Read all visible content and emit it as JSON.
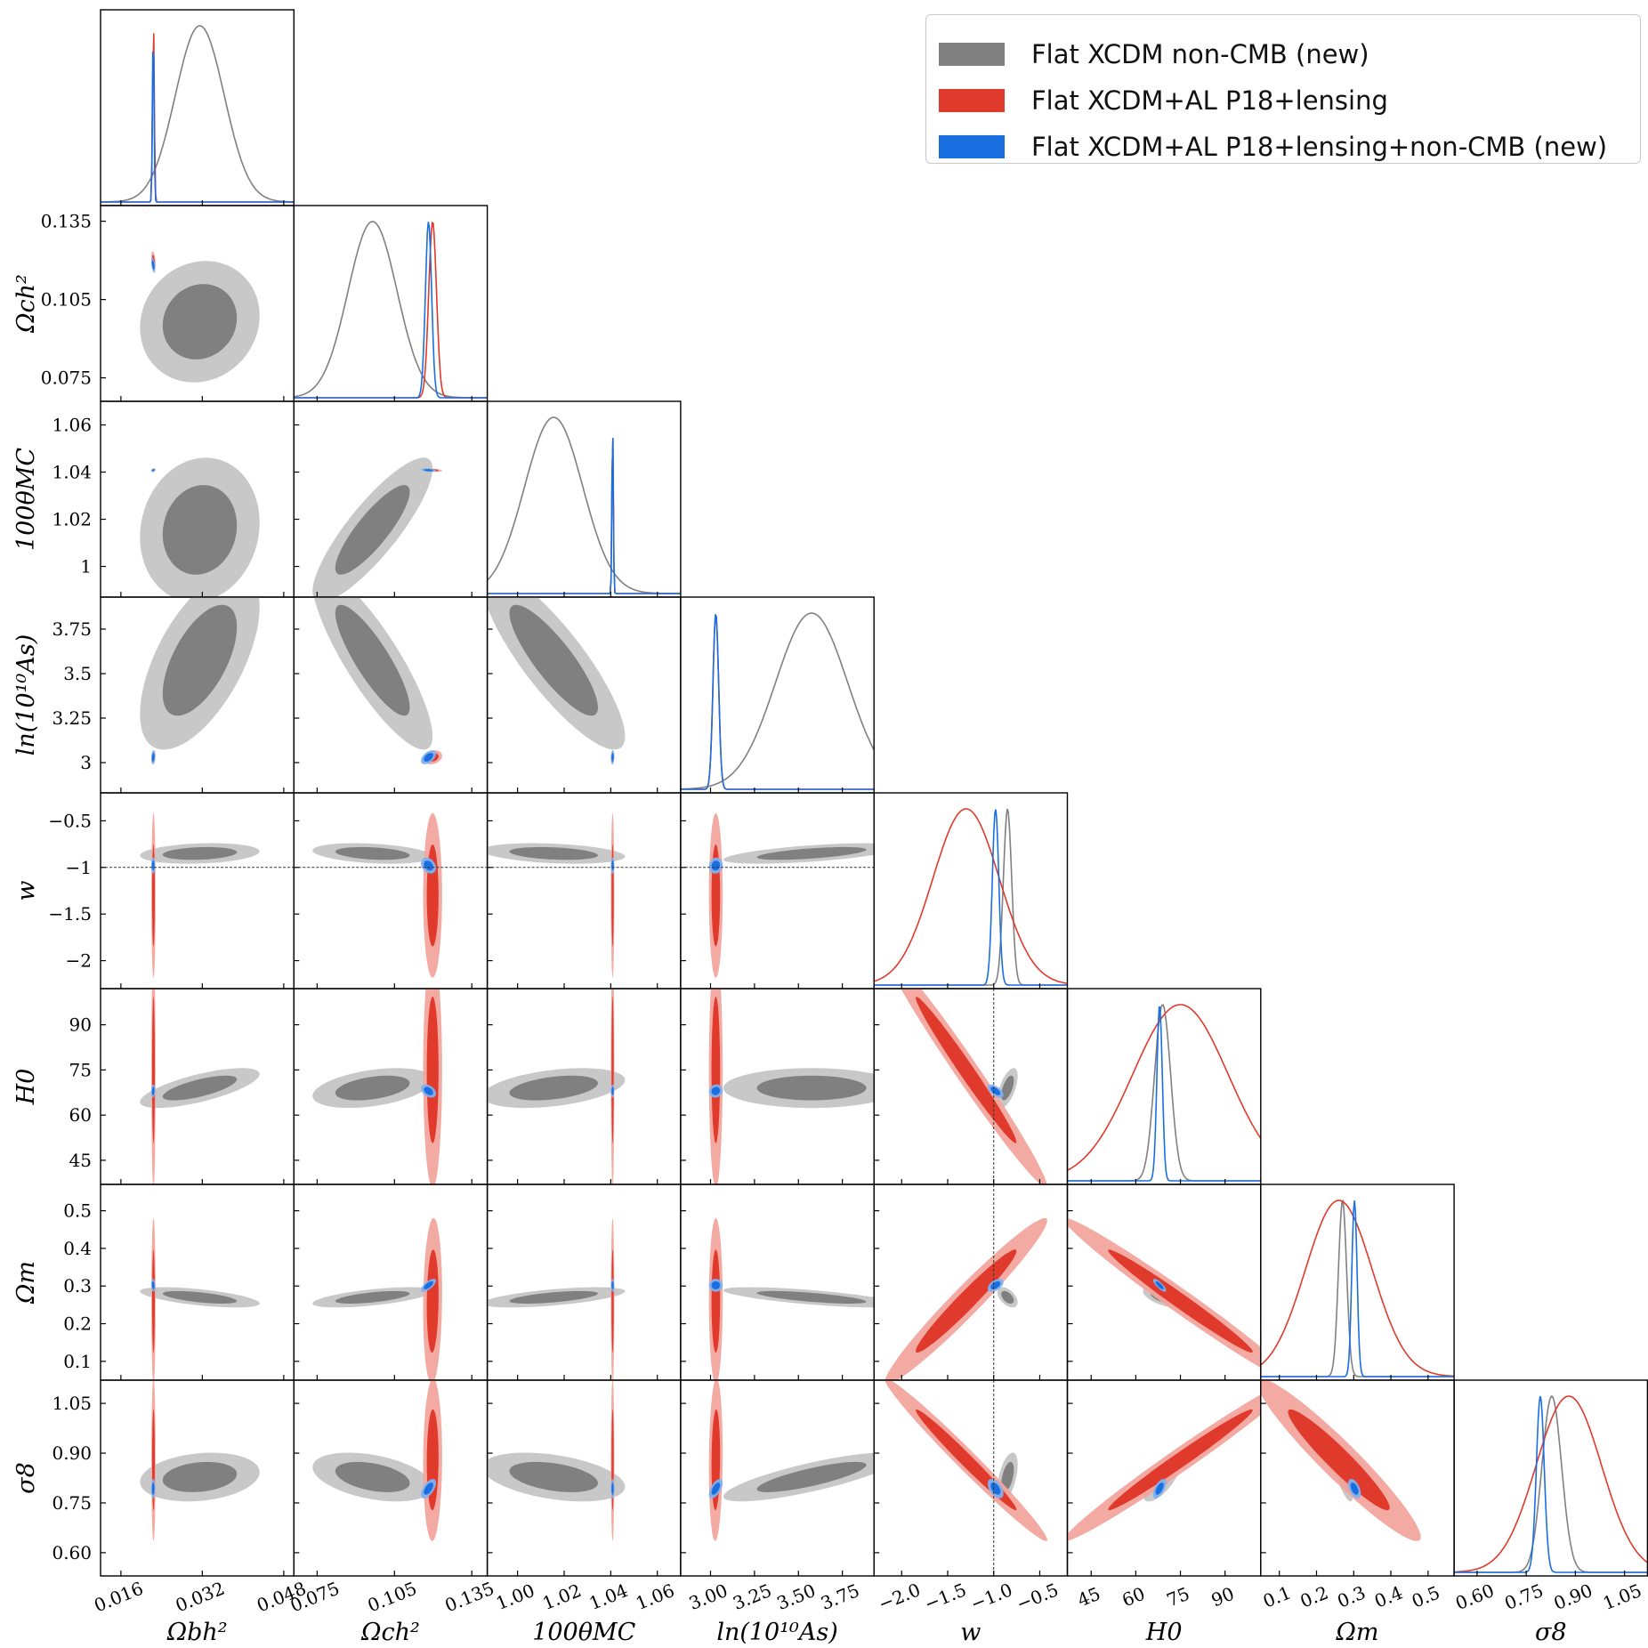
{
  "chart_data": {
    "type": "triangle-corner",
    "params": [
      {
        "key": "ombh2",
        "label": "Ωbh²",
        "range": [
          0.012,
          0.05
        ],
        "ticks": [
          0.016,
          0.032,
          0.048
        ],
        "tick_labels": [
          "0.016",
          "0.032",
          "0.048"
        ]
      },
      {
        "key": "omch2",
        "label": "Ωch²",
        "range": [
          0.066,
          0.141
        ],
        "ticks": [
          0.075,
          0.105,
          0.135
        ],
        "tick_labels": [
          "0.075",
          "0.105",
          "0.135"
        ]
      },
      {
        "key": "theta",
        "label": "100θMC",
        "range": [
          0.987,
          1.07
        ],
        "ticks": [
          1.0,
          1.02,
          1.04,
          1.06
        ],
        "tick_labels": [
          "1.00",
          "1.02",
          "1.04",
          "1.06"
        ],
        "row_tick_labels": [
          "1",
          "1.02",
          "1.04",
          "1.06"
        ]
      },
      {
        "key": "logA",
        "label": "ln(10¹⁰As)",
        "range": [
          2.83,
          3.93
        ],
        "ticks": [
          3.0,
          3.25,
          3.5,
          3.75
        ],
        "tick_labels": [
          "3.00",
          "3.25",
          "3.50",
          "3.75"
        ],
        "row_tick_labels": [
          "3",
          "3.25",
          "3.5",
          "3.75"
        ]
      },
      {
        "key": "w",
        "label": "w",
        "range": [
          -2.3,
          -0.2
        ],
        "ticks": [
          -2.0,
          -1.5,
          -1.0,
          -0.5
        ],
        "tick_labels": [
          "−2.0",
          "−1.5",
          "−1.0",
          "−0.5"
        ],
        "row_tick_labels": [
          "−2",
          "−1.5",
          "−1",
          "−0.5"
        ]
      },
      {
        "key": "H0",
        "label": "H0",
        "range": [
          37,
          102
        ],
        "ticks": [
          45,
          60,
          75,
          90
        ],
        "tick_labels": [
          "45",
          "60",
          "75",
          "90"
        ]
      },
      {
        "key": "omegam",
        "label": "Ωm",
        "range": [
          0.05,
          0.57
        ],
        "ticks": [
          0.1,
          0.2,
          0.3,
          0.4,
          0.5
        ],
        "tick_labels": [
          "0.1",
          "0.2",
          "0.3",
          "0.4",
          "0.5"
        ]
      },
      {
        "key": "sigma8",
        "label": "σ8",
        "range": [
          0.53,
          1.12
        ],
        "ticks": [
          0.6,
          0.75,
          0.9,
          1.05
        ],
        "tick_labels": [
          "0.60",
          "0.75",
          "0.90",
          "1.05"
        ]
      }
    ],
    "series": [
      {
        "name": "Flat XCDM non-CMB (new)",
        "color": "#808080",
        "color_outer": "#c8c8c8",
        "mean": [
          0.0315,
          0.0965,
          1.0155,
          3.575,
          -0.85,
          69.0,
          0.27,
          0.828
        ],
        "sigma": [
          0.0048,
          0.0095,
          0.0125,
          0.205,
          0.045,
          2.7,
          0.011,
          0.03
        ]
      },
      {
        "name": "Flat XCDM+AL P18+lensing",
        "color": "#e03a2c",
        "color_outer": "#f2a59d",
        "mean": [
          0.0224,
          0.1198,
          1.0408,
          3.03,
          -1.3,
          75.0,
          0.26,
          0.88
        ],
        "sigma": [
          0.00017,
          0.0015,
          0.0003,
          0.016,
          0.36,
          16.0,
          0.09,
          0.1
        ]
      },
      {
        "name": "Flat XCDM+AL P18+lensing+non-CMB (new)",
        "color": "#1a6fe0",
        "color_outer": "#7fb0f0",
        "mean": [
          0.02235,
          0.1182,
          1.0408,
          3.03,
          -0.98,
          68.0,
          0.302,
          0.793
        ],
        "sigma": [
          0.00016,
          0.0012,
          0.0003,
          0.016,
          0.035,
          0.9,
          0.007,
          0.012
        ]
      }
    ],
    "reference_lines": {
      "w": -1.0
    },
    "legend": "top-right"
  }
}
